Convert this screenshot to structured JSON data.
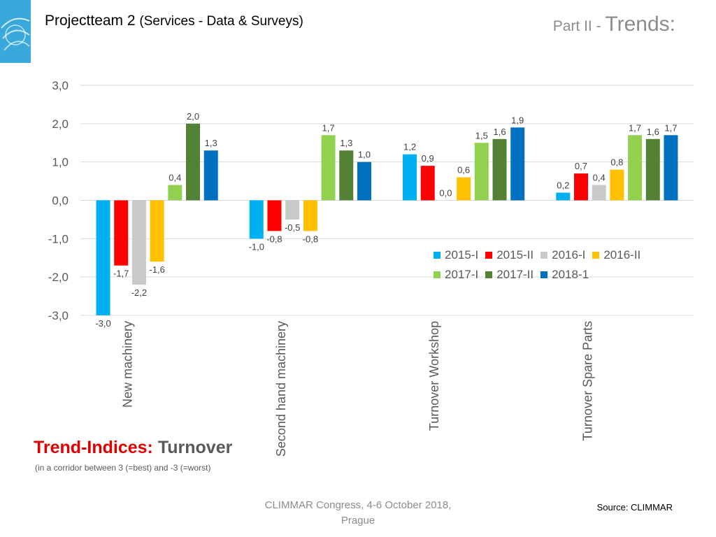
{
  "header": {
    "title_main": "Projectteam 2",
    "title_sub": "(Services - Data & Surveys)",
    "part_prefix": "Part II - ",
    "part_main": "Trends:"
  },
  "caption": {
    "trend_word": "Trend",
    "indices_word": "-Indices: ",
    "turnover_word": "Turnover",
    "corridor": "(in a corridor between 3 (=best) and -3 (=worst)"
  },
  "footer": {
    "line1": "CLIMMAR Congress, 4-6 October 2018,",
    "line2": "Prague",
    "source": "Source: CLIMMAR"
  },
  "chart_data": {
    "type": "bar",
    "title": "",
    "xlabel": "",
    "ylabel": "",
    "ylim": [
      -3,
      3
    ],
    "yticks": [
      "3,0",
      "2,0",
      "1,0",
      "0,0",
      "-1,0",
      "-2,0",
      "-3,0"
    ],
    "grid": true,
    "legend_position": "lower-right",
    "categories": [
      "New machinery",
      "Second hand machinery",
      "Turnover Workshop",
      "Turnover Spare Parts"
    ],
    "series": [
      {
        "name": "2015-I",
        "color": "#00b0f0",
        "values": [
          -3.0,
          -1.0,
          1.2,
          0.2
        ],
        "labels": [
          "-3,0",
          "-1,0",
          "1,2",
          "0,2"
        ]
      },
      {
        "name": "2015-II",
        "color": "#ff0000",
        "values": [
          -1.7,
          -0.8,
          0.9,
          0.7
        ],
        "labels": [
          "-1,7",
          "-0,8",
          "0,9",
          "0,7"
        ]
      },
      {
        "name": "2016-I",
        "color": "#c9c9c9",
        "values": [
          -2.2,
          -0.5,
          0.0,
          0.4
        ],
        "labels": [
          "-2,2",
          "-0,5",
          "0,0",
          "0,4"
        ]
      },
      {
        "name": "2016-II",
        "color": "#ffc000",
        "values": [
          -1.6,
          -0.8,
          0.6,
          0.8
        ],
        "labels": [
          "-1,6",
          "-0,8",
          "0,6",
          "0,8"
        ]
      },
      {
        "name": "2017-I",
        "color": "#92d050",
        "values": [
          0.4,
          1.7,
          1.5,
          1.7
        ],
        "labels": [
          "0,4",
          "1,7",
          "1,5",
          "1,7"
        ]
      },
      {
        "name": "2017-II",
        "color": "#548235",
        "values": [
          2.0,
          1.3,
          1.6,
          1.6
        ],
        "labels": [
          "2,0",
          "1,3",
          "1,6",
          "1,6"
        ]
      },
      {
        "name": "2018-1",
        "color": "#0070c0",
        "values": [
          1.3,
          1.0,
          1.9,
          1.7
        ],
        "labels": [
          "1,3",
          "1,0",
          "1,9",
          "1,7"
        ]
      }
    ]
  }
}
